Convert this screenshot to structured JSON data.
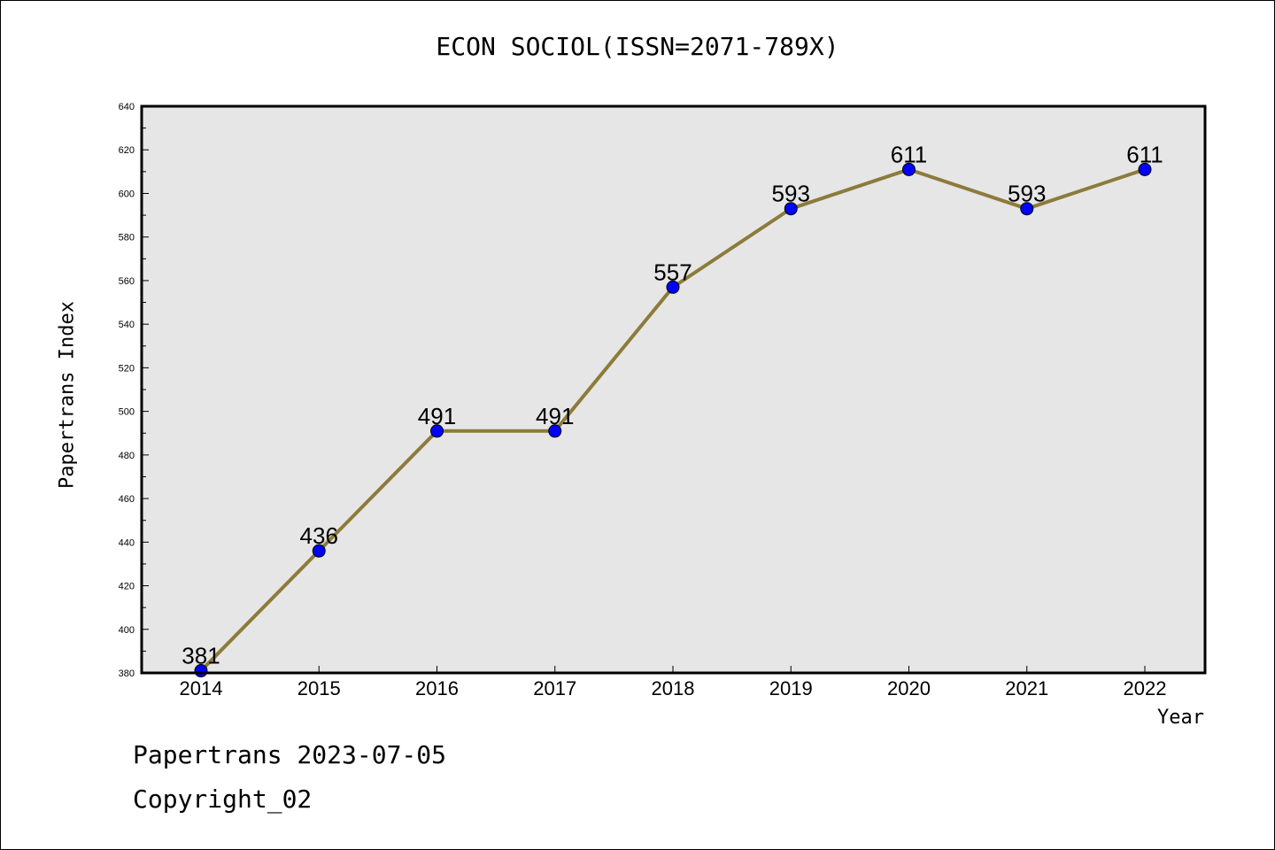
{
  "chart_data": {
    "type": "line",
    "title": "ECON SOCIOL(ISSN=2071-789X)",
    "xlabel": "Year",
    "ylabel": "Papertrans Index",
    "categories": [
      "2014",
      "2015",
      "2016",
      "2017",
      "2018",
      "2019",
      "2020",
      "2021",
      "2022"
    ],
    "values": [
      381,
      436,
      491,
      491,
      557,
      593,
      611,
      593,
      611
    ],
    "data_labels": [
      "381",
      "436",
      "491",
      "491",
      "557",
      "593",
      "611",
      "593",
      "611"
    ],
    "ylim": [
      380,
      640
    ],
    "y_ticks": [
      380,
      400,
      420,
      440,
      460,
      480,
      500,
      520,
      540,
      560,
      580,
      600,
      620,
      640
    ],
    "grid": false,
    "line_color": "#8c7b3a",
    "marker_color": "#0000ff",
    "plot_background": "#e6e6e6"
  },
  "footer": {
    "date_text": "Papertrans 2023-07-05",
    "copyright_text": "Copyright_02"
  }
}
